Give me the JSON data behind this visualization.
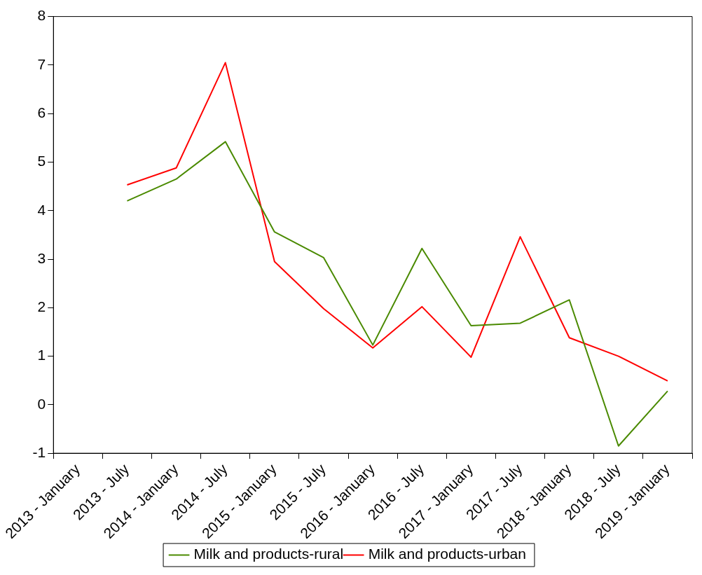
{
  "chart_data": {
    "type": "line",
    "categories": [
      "2013 - January",
      "2013 - July",
      "2014 - January",
      "2014 - July",
      "2015 - January",
      "2015 - July",
      "2016 - January",
      "2016 - July",
      "2017 - January",
      "2017 - July",
      "2018 - January",
      "2018 - July",
      "2019 - January"
    ],
    "series": [
      {
        "name": "Milk and products-rural",
        "color": "#4a8a00",
        "values": [
          null,
          4.2,
          4.65,
          5.42,
          3.56,
          3.03,
          1.23,
          3.22,
          1.63,
          1.68,
          2.16,
          -0.85,
          0.28
        ]
      },
      {
        "name": "Milk and products-urban",
        "color": "#ff0000",
        "values": [
          null,
          4.53,
          4.88,
          7.05,
          2.95,
          1.98,
          1.17,
          2.02,
          0.98,
          3.46,
          1.38,
          1.0,
          0.49
        ]
      }
    ],
    "ylim": [
      -1,
      8
    ],
    "yticks": [
      -1,
      0,
      1,
      2,
      3,
      4,
      5,
      6,
      7,
      8
    ],
    "grid": false,
    "legend": "bottom",
    "marker": "none",
    "line_style": "solid"
  }
}
